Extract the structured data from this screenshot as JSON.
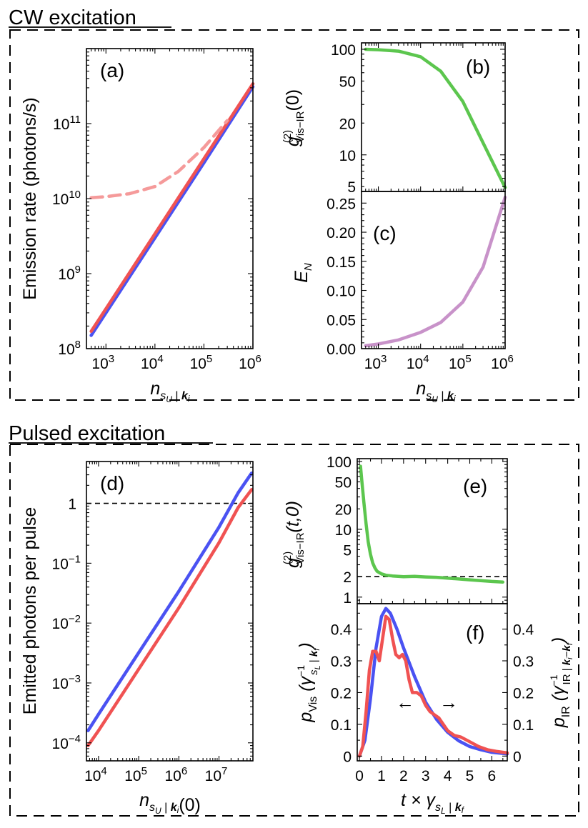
{
  "sections": {
    "cw_title": "CW excitation",
    "pulsed_title": "Pulsed excitation"
  },
  "colors": {
    "blue": "#4a52f2",
    "red": "#f05252",
    "red_dashed": "#f59a9a",
    "green": "#5cc64e",
    "purple": "#c892c9"
  },
  "chart_data": [
    {
      "panel": "(a)",
      "type": "line",
      "x_scale": "log",
      "y_scale": "log",
      "xlim": [
        400,
        1000000
      ],
      "ylim": [
        100000000,
        1000000000000
      ],
      "ylabel": "Emission rate (photons/s)",
      "xlabel": "n_{s_U | k_i}",
      "x_tick_labels": [
        "10^3",
        "10^4",
        "10^5",
        "10^6"
      ],
      "y_tick_labels": [
        "10^8",
        "10^9",
        "10^10",
        "10^11"
      ],
      "series": [
        {
          "color": "blue",
          "style": "solid",
          "x": [
            500,
            1000,
            10000,
            100000,
            1000000
          ],
          "y": [
            150000000,
            300000000,
            3000000000,
            30000000000,
            310000000000
          ]
        },
        {
          "color": "red",
          "style": "solid",
          "x": [
            500,
            1000,
            10000,
            100000,
            1000000
          ],
          "y": [
            170000000,
            340000000,
            3400000000,
            34000000000,
            340000000000
          ]
        },
        {
          "color": "red_dashed",
          "style": "dashed",
          "x": [
            500,
            1000,
            3000,
            10000,
            30000,
            100000,
            300000
          ],
          "y": [
            10300000000,
            10600000000,
            11600000000,
            14500000000,
            23000000000,
            48000000000,
            110000000000
          ]
        }
      ]
    },
    {
      "panel": "(b)",
      "type": "line",
      "x_scale": "log",
      "y_scale": "log",
      "xlim": [
        400,
        1000000
      ],
      "ylim": [
        4.5,
        115
      ],
      "ylabel_main": "g",
      "ylabel_sup": "(2)",
      "ylabel_sub": "Vis−IR",
      "ylabel_arg": "(0)",
      "y_tick_labels": [
        "5",
        "10",
        "20",
        "50",
        "100"
      ],
      "series": [
        {
          "color": "green",
          "x": [
            500,
            1000,
            3000,
            10000,
            30000,
            100000,
            300000,
            1000000
          ],
          "y": [
            100,
            99,
            96,
            85,
            62,
            32,
            13,
            4.9
          ]
        }
      ]
    },
    {
      "panel": "(c)",
      "type": "line",
      "x_scale": "log",
      "y_scale": "linear",
      "xlim": [
        400,
        1000000
      ],
      "ylim": [
        0,
        0.27
      ],
      "ylabel": "E_N",
      "xlabel": "n_{s_U | k_i}",
      "x_tick_labels": [
        "10^3",
        "10^4",
        "10^5",
        "10^6"
      ],
      "y_tick_labels": [
        "0.00",
        "0.05",
        "0.10",
        "0.15",
        "0.20",
        "0.25"
      ],
      "series": [
        {
          "color": "purple",
          "x": [
            500,
            1000,
            3000,
            10000,
            30000,
            100000,
            300000,
            1000000
          ],
          "y": [
            0.005,
            0.008,
            0.015,
            0.028,
            0.045,
            0.08,
            0.14,
            0.26
          ]
        }
      ]
    },
    {
      "panel": "(d)",
      "type": "line",
      "x_scale": "log",
      "y_scale": "log",
      "xlim": [
        5000,
        70000000
      ],
      "ylim": [
        5e-05,
        5
      ],
      "ylabel": "Emitted photons per pulse",
      "xlabel": "n_{s_U | k_i}(0)",
      "x_tick_labels": [
        "10^4",
        "10^5",
        "10^6",
        "10^7"
      ],
      "y_tick_labels": [
        "10^−4",
        "10^−3",
        "10^−2",
        "10^−1",
        "1"
      ],
      "reference_line_y": 1,
      "series": [
        {
          "color": "blue",
          "x": [
            5500,
            10000,
            100000,
            1000000,
            10000000,
            30000000,
            65000000
          ],
          "y": [
            0.00016,
            0.0003,
            0.0032,
            0.034,
            0.4,
            1.5,
            3.2
          ]
        },
        {
          "color": "red",
          "x": [
            5500,
            10000,
            100000,
            1000000,
            10000000,
            30000000,
            65000000
          ],
          "y": [
            9e-05,
            0.00016,
            0.0017,
            0.018,
            0.22,
            0.85,
            1.7
          ]
        }
      ]
    },
    {
      "panel": "(e)",
      "type": "line",
      "x_scale": "linear",
      "y_scale": "log",
      "xlim": [
        -0.1,
        6.7
      ],
      "ylim": [
        0.8,
        110
      ],
      "ylabel_main": "g",
      "ylabel_sup": "(2)",
      "ylabel_sub": "Vis−IR",
      "ylabel_arg": "(t,0)",
      "y_tick_labels": [
        "1",
        "2",
        "5",
        "10",
        "20",
        "50",
        "100"
      ],
      "reference_line_y": 2,
      "series": [
        {
          "color": "green",
          "x": [
            0.05,
            0.1,
            0.2,
            0.3,
            0.4,
            0.5,
            0.6,
            0.7,
            0.8,
            1.0,
            1.2,
            1.5,
            2.0,
            2.5,
            3.0,
            3.5,
            4.0,
            4.5,
            5.0,
            5.5,
            6.0,
            6.5
          ],
          "y": [
            85,
            55,
            25,
            12,
            6.5,
            4.3,
            3.2,
            2.7,
            2.4,
            2.2,
            2.1,
            2.05,
            2.0,
            2.02,
            1.98,
            1.96,
            1.9,
            1.85,
            1.8,
            1.75,
            1.7,
            1.67
          ]
        }
      ]
    },
    {
      "panel": "(f)",
      "type": "line",
      "x_scale": "linear",
      "y_scale": "linear",
      "xlim": [
        -0.1,
        6.7
      ],
      "ylim": [
        -0.015,
        0.48
      ],
      "xlabel": "t × γ_{s_L | k_f}",
      "ylabel_left": "p_Vis (γ^{−1}_{s_L | k_f})",
      "ylabel_right": "p_IR (γ^{−1}_{IR | k_i − k_f})",
      "x_tick_labels": [
        "0",
        "1",
        "2",
        "3",
        "4",
        "5",
        "6"
      ],
      "y_tick_labels": [
        "0",
        "0.1",
        "0.2",
        "0.3",
        "0.4"
      ],
      "series": [
        {
          "color": "blue",
          "axis": "left",
          "x": [
            0,
            0.25,
            0.5,
            0.75,
            1.0,
            1.2,
            1.4,
            1.7,
            2.0,
            2.5,
            3.0,
            3.5,
            4.0,
            4.5,
            5.0,
            5.5,
            6.0,
            6.7
          ],
          "y": [
            0,
            0.05,
            0.18,
            0.34,
            0.44,
            0.465,
            0.45,
            0.4,
            0.34,
            0.25,
            0.17,
            0.115,
            0.075,
            0.048,
            0.03,
            0.02,
            0.012,
            0.007
          ]
        },
        {
          "color": "red",
          "axis": "right",
          "x": [
            0,
            0.15,
            0.3,
            0.45,
            0.6,
            0.75,
            0.9,
            1.05,
            1.2,
            1.35,
            1.5,
            1.65,
            1.8,
            1.95,
            2.1,
            2.25,
            2.4,
            2.6,
            2.8,
            3.0,
            3.2,
            3.4,
            3.6,
            3.8,
            4.0,
            4.3,
            4.6,
            5.0,
            5.4,
            5.8,
            6.2,
            6.7
          ],
          "y": [
            0,
            0.03,
            0.14,
            0.27,
            0.33,
            0.33,
            0.3,
            0.37,
            0.44,
            0.43,
            0.37,
            0.32,
            0.31,
            0.32,
            0.3,
            0.24,
            0.2,
            0.2,
            0.19,
            0.16,
            0.14,
            0.13,
            0.12,
            0.1,
            0.08,
            0.065,
            0.06,
            0.045,
            0.03,
            0.02,
            0.015,
            0.01
          ]
        }
      ]
    }
  ]
}
